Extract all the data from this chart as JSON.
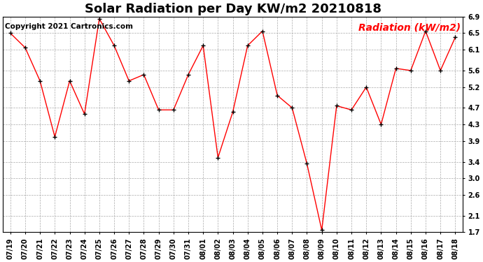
{
  "title": "Solar Radiation per Day KW/m2 20210818",
  "copyright": "Copyright 2021 Cartronics.com",
  "legend_label": "Radiation (kW/m2)",
  "dates": [
    "07/19",
    "07/20",
    "07/21",
    "07/22",
    "07/23",
    "07/24",
    "07/25",
    "07/26",
    "07/27",
    "07/28",
    "07/29",
    "07/30",
    "07/31",
    "08/01",
    "08/02",
    "08/03",
    "08/04",
    "08/05",
    "08/06",
    "08/07",
    "08/08",
    "08/09",
    "08/10",
    "08/11",
    "08/12",
    "08/13",
    "08/14",
    "08/15",
    "08/16",
    "08/17",
    "08/18"
  ],
  "values": [
    6.5,
    6.15,
    5.35,
    4.0,
    5.35,
    4.55,
    6.85,
    6.2,
    5.35,
    5.5,
    4.65,
    4.65,
    5.5,
    6.2,
    3.5,
    4.6,
    6.2,
    6.55,
    5.0,
    4.7,
    3.35,
    1.75,
    4.75,
    4.65,
    5.2,
    4.3,
    5.65,
    5.6,
    6.55,
    5.6,
    6.4
  ],
  "ylim": [
    1.7,
    6.9
  ],
  "yticks": [
    1.7,
    2.1,
    2.6,
    3.0,
    3.4,
    3.9,
    4.3,
    4.7,
    5.2,
    5.6,
    6.1,
    6.5,
    6.9
  ],
  "line_color": "red",
  "marker_color": "black",
  "grid_color": "#aaaaaa",
  "bg_color": "white",
  "title_fontsize": 13,
  "copyright_fontsize": 7.5,
  "legend_fontsize": 10,
  "tick_fontsize": 7
}
